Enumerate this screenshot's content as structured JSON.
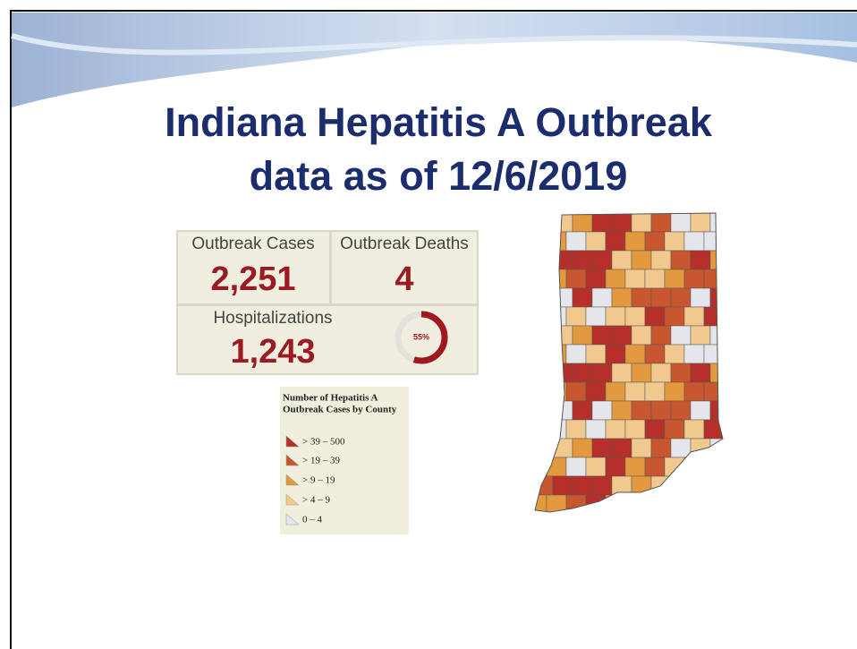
{
  "header": {
    "title_line1": "Indiana Hepatitis A Outbreak",
    "title_line2": "data as of 12/6/2019"
  },
  "dashboard": {
    "cases": {
      "label": "Outbreak Cases",
      "value": "2,251"
    },
    "deaths": {
      "label": "Outbreak Deaths",
      "value": "4"
    },
    "hospitalizations": {
      "label": "Hospitalizations",
      "value": "1,243",
      "percent": {
        "value": 55,
        "label": "55%"
      }
    }
  },
  "legend": {
    "title_line1": "Number of Hepatitis A",
    "title_line2": "Outbreak Cases by County",
    "items": [
      {
        "label": "> 39 – 500",
        "color": "#b5302a"
      },
      {
        "label": "> 19 – 39",
        "color": "#c8562f"
      },
      {
        "label": "> 9 – 19",
        "color": "#e39a3f"
      },
      {
        "label": "> 4 – 9",
        "color": "#f1c98f"
      },
      {
        "label": "0 – 4",
        "color": "#e4e6ec"
      }
    ]
  }
}
